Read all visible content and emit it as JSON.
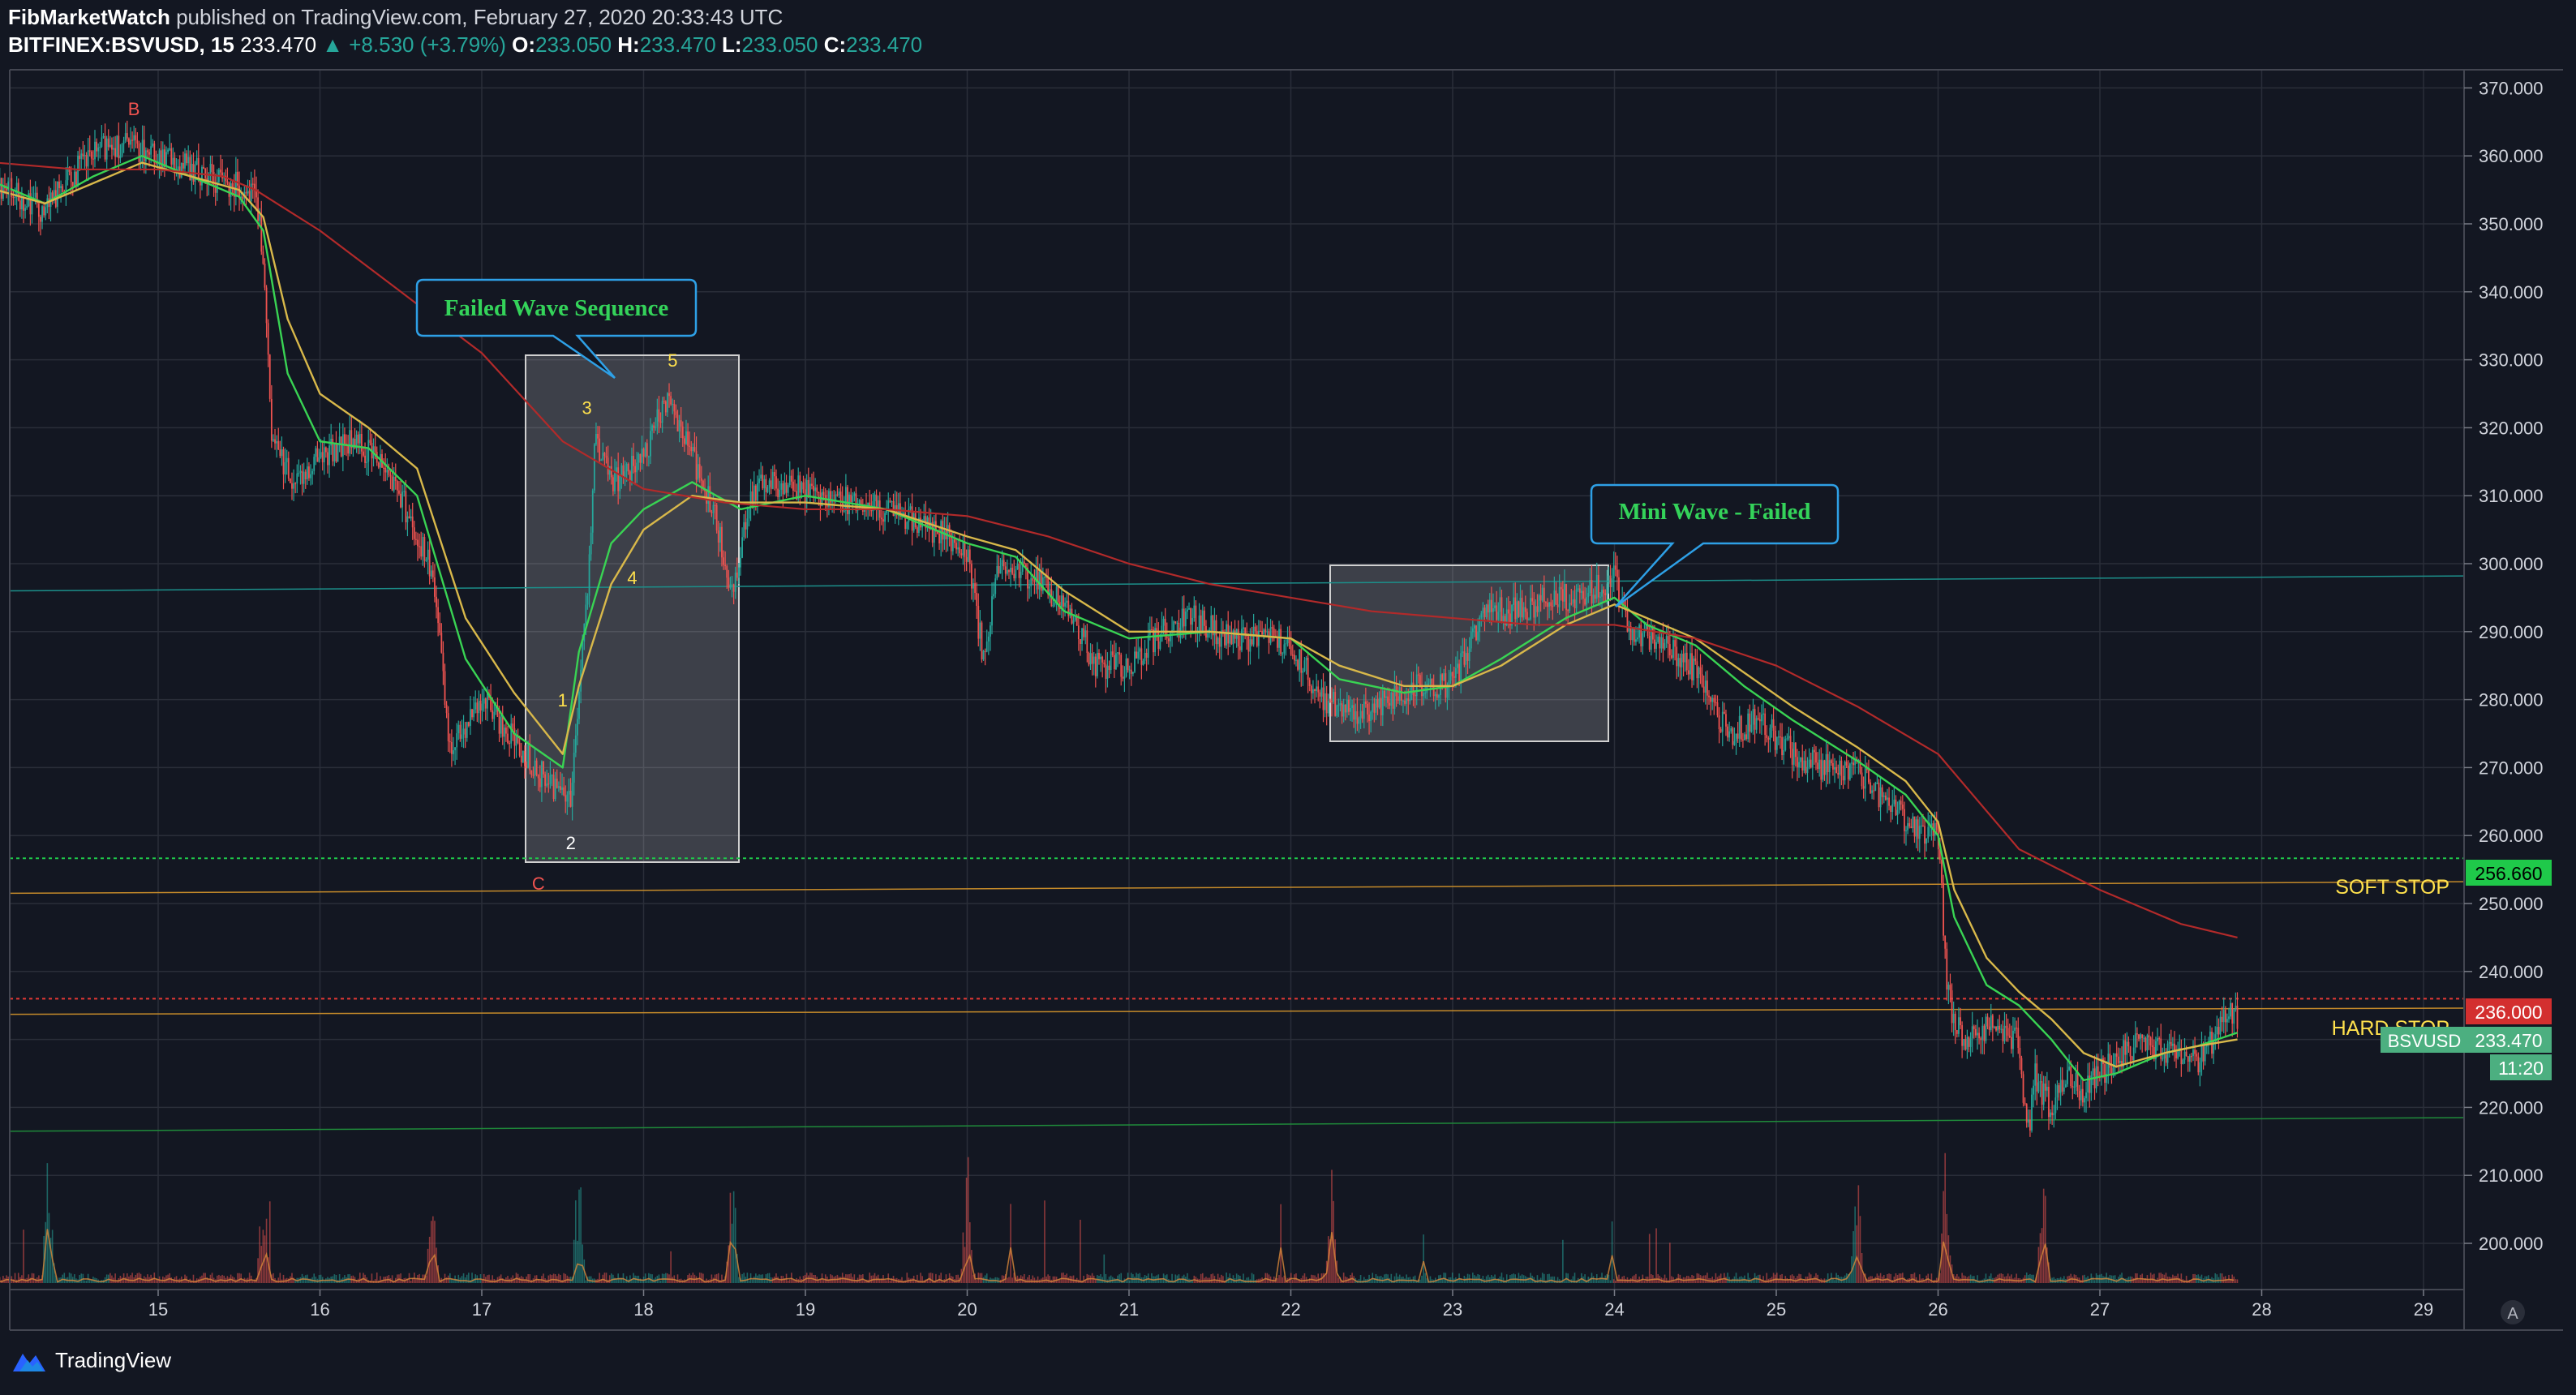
{
  "header": {
    "publisher": "FibMarketWatch",
    "published_text": "published on TradingView.com, February 27, 2020 20:33:43 UTC",
    "symbol": "BITFINEX:BSVUSD, 15",
    "last": "233.470",
    "change": "▲ +8.530 (+3.79%)",
    "o_label": "O:",
    "o": "233.050",
    "h_label": "H:",
    "h": "233.470",
    "l_label": "L:",
    "l": "233.050",
    "c_label": "C:",
    "c": "233.470"
  },
  "footer": {
    "brand": "TradingView"
  },
  "colors": {
    "background": "#131722",
    "grid": "#2a2e39",
    "up": "#26a69a",
    "down": "#ef5350",
    "ema_fast": "#39d353",
    "ema_slow": "#d8b84a",
    "ma_long": "#b22a2a",
    "label_text": "#ffe14d"
  },
  "chart_data": {
    "type": "line",
    "ylim": [
      195,
      372
    ],
    "xlim": [
      14.0,
      29.25
    ],
    "x_ticks": [
      "15",
      "16",
      "17",
      "18",
      "19",
      "20",
      "21",
      "22",
      "23",
      "24",
      "25",
      "26",
      "27",
      "28",
      "29"
    ],
    "y_ticks": [
      "370.000",
      "360.000",
      "350.000",
      "340.000",
      "330.000",
      "320.000",
      "310.000",
      "300.000",
      "290.000",
      "280.000",
      "270.000",
      "260.000",
      "250.000",
      "240.000",
      "230.000",
      "220.000",
      "210.000",
      "200.000"
    ],
    "series": [
      {
        "key": "price",
        "x": [
          14.0,
          14.3,
          14.5,
          14.7,
          14.9,
          15.0,
          15.3,
          15.6,
          15.65,
          15.7,
          15.85,
          16.0,
          16.2,
          16.4,
          16.5,
          16.7,
          16.8,
          17.0,
          17.2,
          17.4,
          17.55,
          17.65,
          17.7,
          17.8,
          18.0,
          18.15,
          18.3,
          18.45,
          18.55,
          18.65,
          18.8,
          19.0,
          19.3,
          19.6,
          19.8,
          20.0,
          20.1,
          20.2,
          20.4,
          20.6,
          20.8,
          21.0,
          21.2,
          21.4,
          21.6,
          21.8,
          22.0,
          22.2,
          22.4,
          22.6,
          22.8,
          23.0,
          23.2,
          23.4,
          23.6,
          23.8,
          24.0,
          24.1,
          24.3,
          24.5,
          24.7,
          24.9,
          25.1,
          25.3,
          25.5,
          25.7,
          25.9,
          26.0,
          26.05,
          26.1,
          26.2,
          26.35,
          26.5,
          26.55,
          26.6,
          26.65,
          26.7,
          26.8,
          26.9,
          27.0,
          27.2,
          27.4,
          27.6,
          27.7,
          27.75,
          27.85
        ],
        "values": [
          356,
          352,
          358,
          362,
          361,
          360,
          357,
          355,
          345,
          318,
          312,
          316,
          318,
          315,
          310,
          298,
          273,
          280,
          274,
          268,
          266,
          295,
          318,
          312,
          315,
          325,
          316,
          306,
          295,
          310,
          312,
          311,
          309,
          307,
          305,
          302,
          286,
          300,
          298,
          294,
          285,
          285,
          290,
          292,
          289,
          289,
          288,
          280,
          278,
          280,
          282,
          282,
          293,
          293,
          295,
          295,
          298,
          290,
          289,
          284,
          275,
          277,
          272,
          270,
          270,
          264,
          261,
          260,
          240,
          232,
          230,
          232,
          230,
          215,
          225,
          222,
          220,
          225,
          222,
          225,
          229,
          228,
          227,
          230,
          234,
          233.47
        ]
      },
      {
        "key": "ema_fast",
        "x": [
          14.0,
          14.3,
          14.6,
          14.9,
          15.2,
          15.5,
          15.65,
          15.8,
          16.0,
          16.3,
          16.6,
          16.9,
          17.2,
          17.5,
          17.6,
          17.8,
          18.0,
          18.3,
          18.6,
          19.0,
          19.5,
          20.0,
          20.3,
          20.6,
          21.0,
          21.5,
          22.0,
          22.3,
          22.7,
          23.0,
          23.3,
          23.7,
          24.0,
          24.2,
          24.5,
          24.8,
          25.1,
          25.5,
          25.8,
          26.0,
          26.1,
          26.3,
          26.5,
          26.7,
          26.9,
          27.1,
          27.4,
          27.6,
          27.85
        ],
        "values": [
          356,
          353,
          357,
          360,
          357,
          354,
          349,
          328,
          318,
          317,
          310,
          286,
          275,
          270,
          287,
          303,
          308,
          312,
          308,
          310,
          308,
          303,
          301,
          293,
          289,
          290,
          289,
          283,
          281,
          282,
          286,
          292,
          295,
          291,
          288,
          282,
          277,
          271,
          266,
          260,
          248,
          238,
          235,
          230,
          224,
          225,
          228,
          229,
          231
        ]
      },
      {
        "key": "ema_slow",
        "x": [
          14.0,
          14.3,
          14.6,
          14.9,
          15.2,
          15.5,
          15.65,
          15.8,
          16.0,
          16.3,
          16.6,
          16.9,
          17.2,
          17.5,
          17.6,
          17.8,
          18.0,
          18.3,
          18.6,
          19.0,
          19.5,
          20.0,
          20.3,
          20.6,
          21.0,
          21.5,
          22.0,
          22.3,
          22.7,
          23.0,
          23.3,
          23.7,
          24.0,
          24.2,
          24.5,
          24.8,
          25.1,
          25.5,
          25.8,
          26.0,
          26.1,
          26.3,
          26.5,
          26.7,
          26.9,
          27.1,
          27.4,
          27.6,
          27.85
        ],
        "values": [
          355,
          353,
          356,
          359,
          357,
          355,
          351,
          336,
          325,
          320,
          314,
          292,
          281,
          272,
          282,
          297,
          305,
          310,
          309,
          309,
          308,
          304,
          302,
          296,
          290,
          290,
          289,
          285,
          282,
          282,
          285,
          291,
          294,
          292,
          289,
          284,
          279,
          273,
          268,
          262,
          252,
          242,
          237,
          233,
          228,
          226,
          228,
          229,
          230
        ]
      },
      {
        "key": "ma_long",
        "x": [
          14.0,
          14.5,
          15.0,
          15.4,
          15.6,
          16.0,
          16.5,
          17.0,
          17.5,
          18.0,
          18.5,
          19.0,
          19.5,
          20.0,
          20.5,
          21.0,
          21.5,
          22.0,
          22.5,
          23.0,
          23.5,
          24.0,
          24.5,
          25.0,
          25.5,
          26.0,
          26.5,
          27.0,
          27.5,
          27.85
        ],
        "values": [
          359,
          358,
          358,
          357,
          355,
          349,
          340,
          331,
          318,
          311,
          309,
          308,
          308,
          307,
          304,
          300,
          297,
          295,
          293,
          292,
          291,
          291,
          289,
          285,
          279,
          272,
          258,
          252,
          247,
          245
        ]
      }
    ],
    "annotations": {
      "box1_label": "Failed Wave Sequence",
      "box2_label": "Mini Wave - Failed",
      "wave_labels": [
        {
          "text": "B",
          "x": 14.85,
          "y": 366,
          "color": "#ef5350"
        },
        {
          "text": "C",
          "x": 17.35,
          "y": 252,
          "color": "#ef5350"
        },
        {
          "text": "1",
          "x": 17.5,
          "y": 279,
          "color": "#ffe14d"
        },
        {
          "text": "2",
          "x": 17.55,
          "y": 258,
          "color": "#ffffff"
        },
        {
          "text": "3",
          "x": 17.65,
          "y": 322,
          "color": "#ffe14d"
        },
        {
          "text": "4",
          "x": 17.93,
          "y": 297,
          "color": "#ffe14d"
        },
        {
          "text": "5",
          "x": 18.18,
          "y": 329,
          "color": "#ffe14d"
        }
      ],
      "soft_stop_label": "SOFT STOP",
      "hard_stop_label": "HARD STOP",
      "soft_stop_value": "256.660",
      "hard_stop_value": "236.000",
      "price_tag_symbol": "BSVUSD",
      "price_tag_value": "233.470",
      "countdown": "11:20",
      "auto_scale": "A"
    }
  }
}
